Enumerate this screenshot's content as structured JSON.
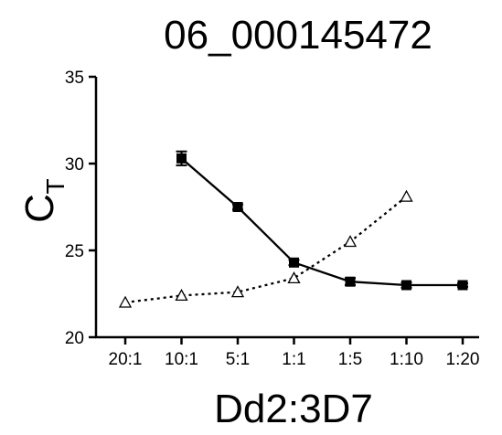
{
  "chart_data": {
    "type": "line",
    "title": "06_000145472",
    "xlabel": "Dd2:3D7",
    "ylabel_main": "C",
    "ylabel_sub": "T",
    "categories": [
      "20:1",
      "10:1",
      "5:1",
      "1:1",
      "1:5",
      "1:10",
      "1:20"
    ],
    "yticks": [
      "20",
      "25",
      "30",
      "35"
    ],
    "ylim": [
      20,
      35
    ],
    "grid": false,
    "series": [
      {
        "marker": "filled-square",
        "line_style": "solid",
        "color": "#000000",
        "values": [
          null,
          30.3,
          27.5,
          24.3,
          23.2,
          23.0,
          23.0
        ],
        "errors": [
          null,
          0.4,
          0.15,
          0.15,
          0.2,
          0.15,
          0.1
        ]
      },
      {
        "marker": "open-triangle",
        "line_style": "dotted",
        "color": "#000000",
        "values": [
          22.0,
          22.4,
          22.6,
          23.4,
          25.5,
          28.1,
          null
        ],
        "errors": [
          null,
          null,
          null,
          null,
          null,
          null,
          null
        ]
      }
    ]
  }
}
